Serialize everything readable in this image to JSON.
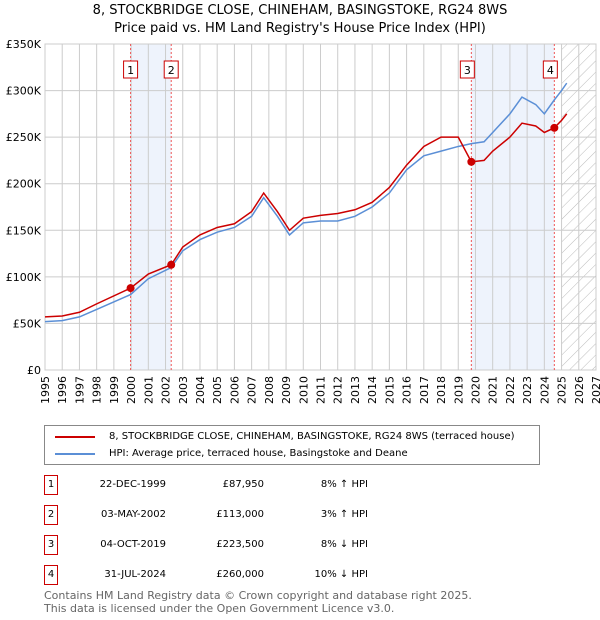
{
  "chart_data": {
    "type": "line",
    "title": "8, STOCKBRIDGE CLOSE, CHINEHAM, BASINGSTOKE, RG24 8WS",
    "subtitle": "Price paid vs. HM Land Registry's House Price Index (HPI)",
    "xlim": [
      1995,
      2027
    ],
    "ylim": [
      0,
      350000
    ],
    "x_ticks": [
      "1995",
      "1996",
      "1997",
      "1998",
      "1999",
      "2000",
      "2001",
      "2002",
      "2003",
      "2004",
      "2005",
      "2006",
      "2007",
      "2008",
      "2009",
      "2010",
      "2011",
      "2012",
      "2013",
      "2014",
      "2015",
      "2016",
      "2017",
      "2018",
      "2019",
      "2020",
      "2021",
      "2022",
      "2023",
      "2024",
      "2025",
      "2026",
      "2027"
    ],
    "y_ticks": [
      {
        "v": 0,
        "label": "£0"
      },
      {
        "v": 50000,
        "label": "£50K"
      },
      {
        "v": 100000,
        "label": "£100K"
      },
      {
        "v": 150000,
        "label": "£150K"
      },
      {
        "v": 200000,
        "label": "£200K"
      },
      {
        "v": 250000,
        "label": "£250K"
      },
      {
        "v": 300000,
        "label": "£300K"
      },
      {
        "v": 350000,
        "label": "£350K"
      }
    ],
    "grid": true,
    "forecast_hatch_from": 2025.0,
    "shaded_spans": [
      [
        1999.97,
        2002.33
      ],
      [
        2019.76,
        2024.58
      ]
    ],
    "series": [
      {
        "name": "8, STOCKBRIDGE CLOSE, CHINEHAM, BASINGSTOKE, RG24 8WS (terraced house)",
        "color": "#cc0000",
        "x": [
          1995,
          1996,
          1997,
          1998,
          1999.97,
          2001,
          2002.33,
          2003,
          2004,
          2005,
          2006,
          2007,
          2007.7,
          2008.5,
          2009.2,
          2010,
          2011,
          2012,
          2013,
          2014,
          2015,
          2016,
          2017,
          2018,
          2019,
          2019.76,
          2020.5,
          2021,
          2022,
          2022.7,
          2023.5,
          2024,
          2024.58,
          2025,
          2025.3
        ],
        "y": [
          57000,
          58000,
          62000,
          71000,
          87950,
          103000,
          113000,
          132000,
          145000,
          153000,
          157000,
          170000,
          190000,
          170000,
          150000,
          163000,
          166000,
          168000,
          172000,
          180000,
          196000,
          220000,
          240000,
          250000,
          250000,
          223500,
          225000,
          235000,
          250000,
          265000,
          262000,
          255000,
          260000,
          268000,
          275000
        ]
      },
      {
        "name": "HPI: Average price, terraced house, Basingstoke and Deane",
        "color": "#5b8fd6",
        "x": [
          1995,
          1996,
          1997,
          1998,
          1999.97,
          2001,
          2002.33,
          2003,
          2004,
          2005,
          2006,
          2007,
          2007.7,
          2008.5,
          2009.2,
          2010,
          2011,
          2012,
          2013,
          2014,
          2015,
          2016,
          2017,
          2018,
          2019,
          2019.76,
          2020.5,
          2021,
          2022,
          2022.7,
          2023.5,
          2024,
          2024.58,
          2025,
          2025.3
        ],
        "y": [
          52000,
          53000,
          57000,
          65000,
          81000,
          98000,
          110000,
          128000,
          140000,
          148000,
          153000,
          165000,
          185000,
          165000,
          145000,
          158000,
          160000,
          160000,
          165000,
          175000,
          190000,
          215000,
          230000,
          235000,
          240000,
          243000,
          245000,
          255000,
          275000,
          293000,
          285000,
          275000,
          290000,
          300000,
          308000
        ]
      }
    ],
    "sales": [
      {
        "n": "1",
        "date": "22-DEC-1999",
        "x": 1999.97,
        "price": 87950,
        "price_label": "£87,950",
        "hpi": "8% ↑ HPI"
      },
      {
        "n": "2",
        "date": "03-MAY-2002",
        "x": 2002.33,
        "price": 113000,
        "price_label": "£113,000",
        "hpi": "3% ↑ HPI"
      },
      {
        "n": "3",
        "date": "04-OCT-2019",
        "x": 2019.76,
        "price": 223500,
        "price_label": "£223,500",
        "hpi": "8% ↓ HPI"
      },
      {
        "n": "4",
        "date": "31-JUL-2024",
        "x": 2024.58,
        "price": 260000,
        "price_label": "£260,000",
        "hpi": "10% ↓ HPI"
      }
    ]
  },
  "footer": {
    "line1": "Contains HM Land Registry data © Crown copyright and database right 2025.",
    "line2": "This data is licensed under the Open Government Licence v3.0."
  }
}
